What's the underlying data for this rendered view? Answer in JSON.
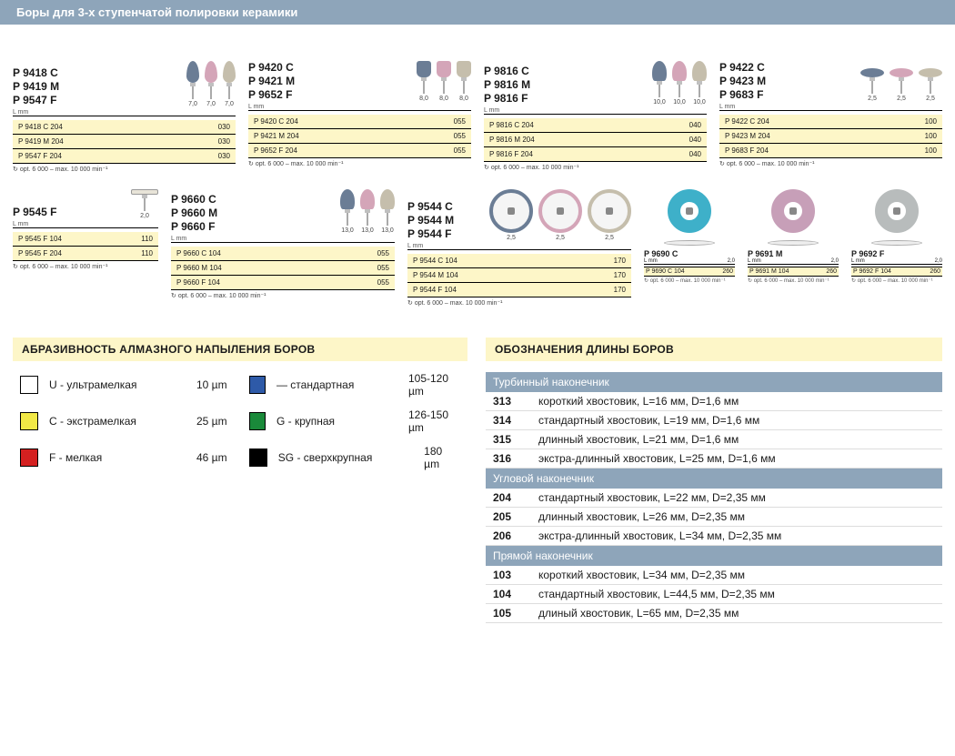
{
  "header": "Боры для 3-х ступенчатой полировки керамики",
  "rpm_text": "opt. 6 000 – max. 10 000 min⁻¹",
  "lmm": "L mm",
  "colors": {
    "blue_gray": "#6b7d95",
    "pink": "#d4a5b8",
    "tan": "#c5beac",
    "green": "#7aa07a",
    "teal": "#3eb0c9",
    "mauve": "#c79fb8",
    "gray": "#b8bcbc"
  },
  "row1": [
    {
      "labels": [
        "P 9418 C",
        "P 9419 M",
        "P 9547 F"
      ],
      "shape": "flame",
      "shape_colors": [
        "blue_gray",
        "pink",
        "tan"
      ],
      "shape_num": "7,0",
      "rows": [
        [
          "P 9418 C 204",
          "030"
        ],
        [
          "P 9419 M 204",
          "030"
        ],
        [
          "P 9547 F 204",
          "030"
        ]
      ]
    },
    {
      "labels": [
        "P 9420 C",
        "P 9421 M",
        "P 9652 F"
      ],
      "shape": "cup",
      "shape_colors": [
        "blue_gray",
        "pink",
        "tan"
      ],
      "shape_num": "8,0",
      "rows": [
        [
          "P 9420 C 204",
          "055"
        ],
        [
          "P 9421 M 204",
          "055"
        ],
        [
          "P 9652 F 204",
          "055"
        ]
      ]
    },
    {
      "labels": [
        "P 9816 C",
        "P 9816 M",
        "P 9816 F"
      ],
      "shape": "bullet",
      "shape_colors": [
        "blue_gray",
        "pink",
        "tan"
      ],
      "shape_num": "10,0",
      "rows": [
        [
          "P 9816 C 204",
          "040"
        ],
        [
          "P 9816 M 204",
          "040"
        ],
        [
          "P 9816 F 204",
          "040"
        ]
      ]
    },
    {
      "labels": [
        "P 9422 C",
        "P 9423 M",
        "P 9683 F"
      ],
      "shape": "lens",
      "shape_colors": [
        "blue_gray",
        "pink",
        "tan"
      ],
      "shape_num": "2,5",
      "rows": [
        [
          "P 9422 C 204",
          "100"
        ],
        [
          "P 9423 M 204",
          "100"
        ],
        [
          "P 9683 F 204",
          "100"
        ]
      ]
    }
  ],
  "row2_first": {
    "labels": [
      "P 9545 F"
    ],
    "shape": "wheel",
    "shape_colors": [
      "tan"
    ],
    "shape_num": "2,0",
    "rows": [
      [
        "P 9545 F 104",
        "110"
      ],
      [
        "P 9545 F 204",
        "110"
      ]
    ]
  },
  "row2": [
    {
      "labels": [
        "P 9660 C",
        "P 9660 M",
        "P 9660 F"
      ],
      "shape": "bullet",
      "shape_colors": [
        "blue_gray",
        "pink",
        "tan"
      ],
      "shape_num": "13,0",
      "rows": [
        [
          "P 9660 C 104",
          "055"
        ],
        [
          "P 9660 M 104",
          "055"
        ],
        [
          "P 9660 F 104",
          "055"
        ]
      ]
    },
    {
      "labels": [
        "P 9544 C",
        "P 9544 M",
        "P 9544 F"
      ],
      "shape": "disc-big",
      "shape_colors": [
        "blue_gray",
        "pink",
        "tan"
      ],
      "shape_num": "2,5",
      "rows": [
        [
          "P 9544 C 104",
          "170"
        ],
        [
          "P 9544 M 104",
          "170"
        ],
        [
          "P 9544 F 104",
          "170"
        ]
      ]
    }
  ],
  "discs": [
    {
      "label": "P 9690 C",
      "color": "teal",
      "num": "2,0",
      "spec": [
        "P 9690 C 104",
        "260"
      ]
    },
    {
      "label": "P 9691 M",
      "color": "mauve",
      "num": "2,0",
      "spec": [
        "P 9691 M 104",
        "260"
      ]
    },
    {
      "label": "P 9692 F",
      "color": "gray",
      "num": "2,0",
      "spec": [
        "P 9692 F 104",
        "260"
      ]
    }
  ],
  "abrasive": {
    "title": "АБРАЗИВНОСТЬ АЛМАЗНОГО НАПЫЛЕНИЯ БОРОВ",
    "items": [
      {
        "color": "#ffffff",
        "label": "U - ультрамелкая",
        "size": "10 µm"
      },
      {
        "color": "#2e5aa8",
        "label": "—   стандартная",
        "size": "105-120 µm"
      },
      {
        "color": "#f2e946",
        "label": "С - экстрамелкая",
        "size": "25 µm"
      },
      {
        "color": "#1a8a3a",
        "label": "G - крупная",
        "size": "126-150 µm"
      },
      {
        "color": "#d42020",
        "label": "F - мелкая",
        "size": "46 µm"
      },
      {
        "color": "#000000",
        "label": "SG - сверхкрупная",
        "size": "180 µm"
      }
    ]
  },
  "lengths": {
    "title": "ОБОЗНАЧЕНИЯ ДЛИНЫ БОРОВ",
    "sections": [
      {
        "header": "Турбинный наконечник",
        "rows": [
          [
            "313",
            "короткий хвостовик, L=16 мм, D=1,6 мм"
          ],
          [
            "314",
            "стандартный хвостовик, L=19 мм, D=1,6 мм"
          ],
          [
            "315",
            "длинный хвостовик, L=21 мм, D=1,6 мм"
          ],
          [
            "316",
            "экстра-длинный хвостовик, L=25 мм, D=1,6 мм"
          ]
        ]
      },
      {
        "header": "Угловой наконечник",
        "rows": [
          [
            "204",
            "стандартный хвостовик, L=22 мм, D=2,35 мм"
          ],
          [
            "205",
            "длинный хвостовик, L=26 мм, D=2,35 мм"
          ],
          [
            "206",
            "экстра-длинный хвостовик, L=34 мм, D=2,35 мм"
          ]
        ]
      },
      {
        "header": "Прямой наконечник",
        "rows": [
          [
            "103",
            "короткий хвостовик, L=34 мм, D=2,35 мм"
          ],
          [
            "104",
            "стандартный хвостовик, L=44,5 мм, D=2,35 мм"
          ],
          [
            "105",
            "длиный хвостовик, L=65 мм, D=2,35 мм"
          ]
        ]
      }
    ]
  }
}
